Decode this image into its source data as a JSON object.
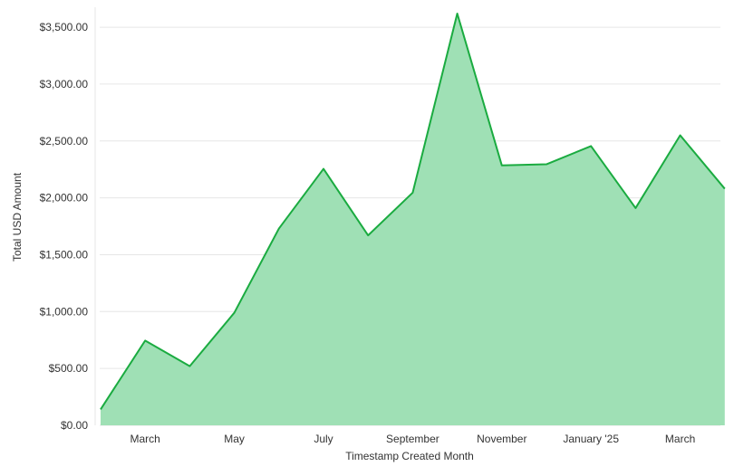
{
  "chart_data": {
    "type": "area",
    "xlabel": "Timestamp Created Month",
    "ylabel": "Total USD Amount",
    "x": [
      "2024-02",
      "2024-03",
      "2024-04",
      "2024-05",
      "2024-06",
      "2024-07",
      "2024-08",
      "2024-09",
      "2024-10",
      "2024-11",
      "2024-12",
      "2025-01",
      "2025-02",
      "2025-03",
      "2025-04"
    ],
    "series": [
      {
        "values": [
          140,
          745,
          520,
          990,
          1730,
          2255,
          1670,
          2045,
          3620,
          2285,
          2295,
          2455,
          1910,
          2550,
          2080
        ]
      }
    ],
    "x_tick_labels": [
      {
        "x": "2024-03",
        "label": "March"
      },
      {
        "x": "2024-05",
        "label": "May"
      },
      {
        "x": "2024-07",
        "label": "July"
      },
      {
        "x": "2024-09",
        "label": "September"
      },
      {
        "x": "2024-11",
        "label": "November"
      },
      {
        "x": "2025-01",
        "label": "January '25"
      },
      {
        "x": "2025-03",
        "label": "March"
      }
    ],
    "y_ticks": [
      {
        "value": 0,
        "label": "$0.00"
      },
      {
        "value": 500,
        "label": "$500.00"
      },
      {
        "value": 1000,
        "label": "$1,000.00"
      },
      {
        "value": 1500,
        "label": "$1,500.00"
      },
      {
        "value": 2000,
        "label": "$2,000.00"
      },
      {
        "value": 2500,
        "label": "$2,500.00"
      },
      {
        "value": 3000,
        "label": "$3,000.00"
      },
      {
        "value": 3500,
        "label": "$3,500.00"
      }
    ],
    "ylim": [
      0,
      3500
    ],
    "grid": true,
    "legend": "none",
    "colors": {
      "line": "#1aab40",
      "fill": "#9fe0b5"
    }
  }
}
